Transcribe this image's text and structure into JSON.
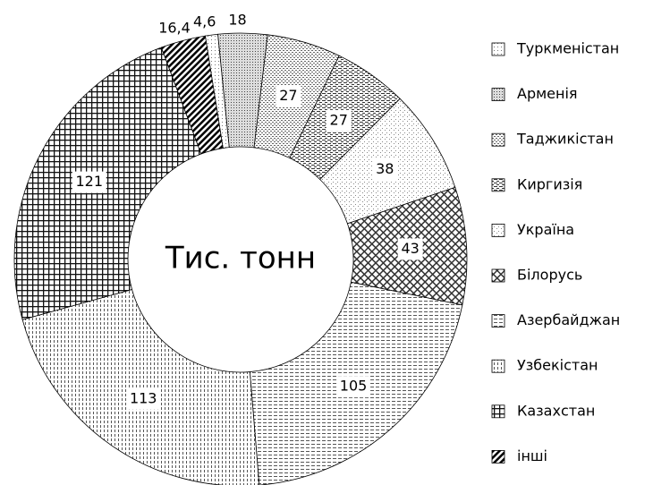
{
  "chart_data": {
    "type": "doughnut",
    "center_label": "Тис. тонн",
    "categories": [
      "Туркменістан",
      "Арменія",
      "Таджикістан",
      "Киргизія",
      "Україна",
      "Білорусь",
      "Азербайджан",
      "Узбекістан",
      "Казахстан",
      "інші"
    ],
    "values": [
      4.6,
      18,
      27,
      27,
      38,
      43,
      105,
      113,
      121,
      16.4
    ],
    "value_labels": [
      "4,6",
      "18",
      "27",
      "27",
      "38",
      "43",
      "105",
      "113",
      "121",
      "16,4"
    ],
    "legend": "right"
  }
}
